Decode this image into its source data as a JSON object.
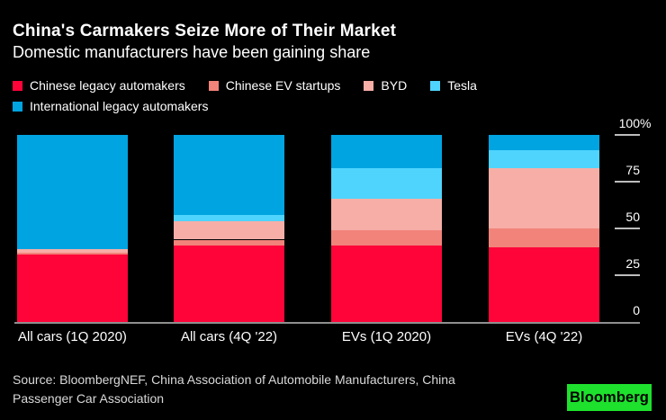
{
  "header": {
    "title": "China's Carmakers Seize More of Their Market",
    "subtitle": "Domestic manufacturers have been gaining share"
  },
  "chart_data": {
    "type": "bar",
    "stacked": true,
    "unit": "%",
    "title": "China's Carmakers Seize More of Their Market",
    "subtitle": "Domestic manufacturers have been gaining share",
    "categories": [
      "All cars (1Q 2020)",
      "All cars (4Q '22)",
      "EVs (1Q 2020)",
      "EVs (4Q '22)"
    ],
    "series": [
      {
        "name": "Chinese legacy automakers",
        "color": "#FF0439",
        "values": [
          36,
          41,
          41,
          40
        ]
      },
      {
        "name": "Chinese EV startups",
        "color": "#F2837A",
        "values": [
          1,
          3,
          8,
          10
        ]
      },
      {
        "name": "BYD",
        "color": "#F7AEA7",
        "values": [
          2,
          10,
          17,
          32
        ]
      },
      {
        "name": "Tesla",
        "color": "#4FD4FE",
        "values": [
          0,
          3,
          16,
          10
        ]
      },
      {
        "name": "International legacy automakers",
        "color": "#00A4E1",
        "values": [
          61,
          43,
          18,
          8
        ]
      }
    ],
    "ylim": [
      0,
      100
    ],
    "yticks": [
      {
        "label": "100",
        "suffix": "%",
        "value": 100
      },
      {
        "label": "75",
        "suffix": "",
        "value": 75
      },
      {
        "label": "50",
        "suffix": "",
        "value": 50
      },
      {
        "label": "25",
        "suffix": "",
        "value": 25
      },
      {
        "label": "0",
        "suffix": "",
        "value": 0
      }
    ],
    "grid": false,
    "legend_position": "top",
    "axis_side": "right"
  },
  "footer": {
    "source_line1": "Source: BloombergNEF, China Association of Automobile Manufacturers, China",
    "source_line2": "Passenger Car Association",
    "logo": "Bloomberg"
  },
  "colors": {
    "background": "#000000",
    "text": "#FFFFFF",
    "muted_text": "#D9D9D9",
    "tick": "#BDBDBD",
    "baseline": "#8F8F8F",
    "logo_background": "#1EE12D",
    "logo_text": "#000000"
  }
}
